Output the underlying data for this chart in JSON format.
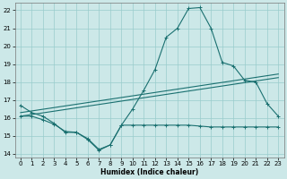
{
  "xlabel": "Humidex (Indice chaleur)",
  "bg_color": "#cce8e8",
  "grid_color": "#99cccc",
  "line_color": "#1a7070",
  "xlim": [
    -0.5,
    23.5
  ],
  "ylim": [
    13.8,
    22.4
  ],
  "xticks": [
    0,
    1,
    2,
    3,
    4,
    5,
    6,
    7,
    8,
    9,
    10,
    11,
    12,
    13,
    14,
    15,
    16,
    17,
    18,
    19,
    20,
    21,
    22,
    23
  ],
  "yticks": [
    14,
    15,
    16,
    17,
    18,
    19,
    20,
    21,
    22
  ],
  "line1_x": [
    0,
    1,
    2,
    3,
    4,
    5,
    6,
    7,
    8,
    9,
    10,
    11,
    12,
    13,
    14,
    15,
    16,
    17,
    18,
    19,
    20,
    21,
    22,
    23
  ],
  "line1_y": [
    16.7,
    16.3,
    16.1,
    15.7,
    15.2,
    15.2,
    14.8,
    14.2,
    14.5,
    15.6,
    16.5,
    17.55,
    18.7,
    20.5,
    21.0,
    22.1,
    22.15,
    21.0,
    19.1,
    18.9,
    18.1,
    18.0,
    16.8,
    16.1
  ],
  "line2_x": [
    0,
    23
  ],
  "line2_y": [
    16.1,
    18.25
  ],
  "line3_x": [
    0,
    23
  ],
  "line3_y": [
    16.3,
    18.45
  ],
  "line4_x": [
    0,
    1,
    2,
    3,
    4,
    5,
    6,
    7,
    8,
    9,
    10,
    11,
    12,
    13,
    14,
    15,
    16,
    17,
    18,
    19,
    20,
    21,
    22,
    23
  ],
  "line4_y": [
    16.1,
    16.1,
    15.9,
    15.65,
    15.25,
    15.2,
    14.85,
    14.25,
    14.5,
    15.6,
    15.6,
    15.6,
    15.6,
    15.6,
    15.6,
    15.6,
    15.55,
    15.5,
    15.5,
    15.5,
    15.5,
    15.5,
    15.5,
    15.5
  ]
}
